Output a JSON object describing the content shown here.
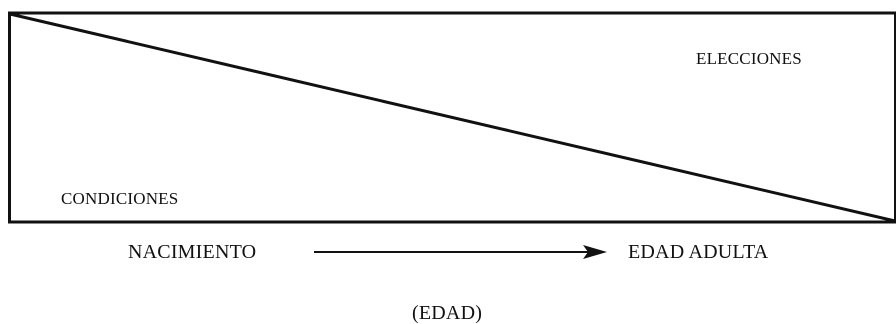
{
  "diagram": {
    "upper_region_label": "ELECCIONES",
    "lower_region_label": "CONDICIONES",
    "axis_start_label": "NACIMIENTO",
    "axis_end_label": "EDAD ADULTA",
    "axis_caption": "(EDAD)"
  },
  "colors": {
    "stroke": "#111111",
    "background": "#ffffff"
  }
}
